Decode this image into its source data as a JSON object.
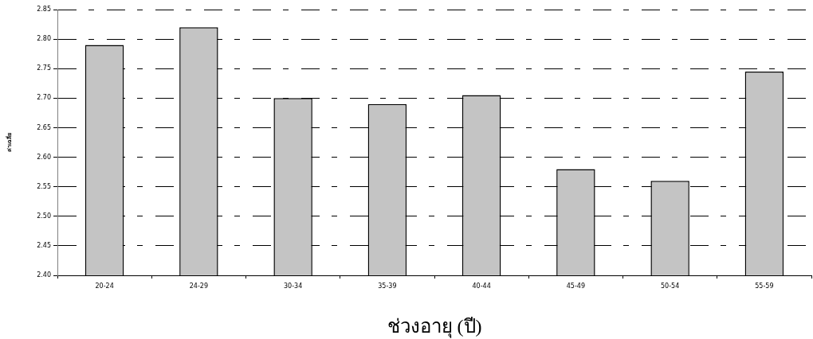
{
  "chart_data": {
    "type": "bar",
    "xlabel": "ช่วงอายุ (ปี)",
    "ylabel": "ค่าเฉลี่ย",
    "categories": [
      "20-24",
      "24-29",
      "30-34",
      "35-39",
      "40-44",
      "45-49",
      "50-54",
      "55-59"
    ],
    "values": [
      2.79,
      2.82,
      2.7,
      2.69,
      2.705,
      2.58,
      2.56,
      2.745
    ],
    "color": "#c4c4c4",
    "ylim": [
      2.4,
      2.85
    ],
    "yticks": [
      {
        "value": 2.4,
        "label": "2.40"
      },
      2.45,
      {
        "value": 2.5,
        "label": "2.50"
      },
      2.55,
      {
        "value": 2.6,
        "label": "2.60"
      },
      2.65,
      {
        "value": 2.7,
        "label": "2.70"
      },
      2.75,
      {
        "value": 2.8,
        "label": "2.80"
      },
      2.85
    ],
    "grid": "y"
  }
}
